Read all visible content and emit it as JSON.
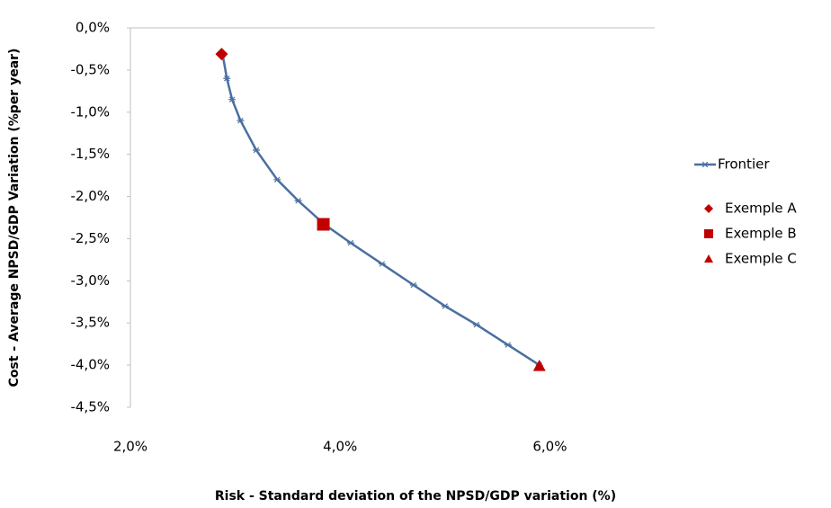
{
  "chart_data": {
    "type": "scatter",
    "x_label": "Risk - Standard deviation of the NPSD/GDP variation (%)",
    "y_label": "Cost  - Average NPSD/GDP Variation  (%per year)",
    "xlim": [
      2,
      7
    ],
    "ylim": [
      -4.5,
      0
    ],
    "xticks": [
      {
        "value": 2,
        "label": "2,0%"
      },
      {
        "value": 4,
        "label": "4,0%"
      },
      {
        "value": 6,
        "label": "6,0%"
      }
    ],
    "yticks": [
      {
        "value": 0,
        "label": "0,0%"
      },
      {
        "value": -0.5,
        "label": "-0,5%"
      },
      {
        "value": -1,
        "label": "-1,0%"
      },
      {
        "value": -1.5,
        "label": "-1,5%"
      },
      {
        "value": -2,
        "label": "-2,0%"
      },
      {
        "value": -2.5,
        "label": "-2,5%"
      },
      {
        "value": -3,
        "label": "-3,0%"
      },
      {
        "value": -3.5,
        "label": "-3,5%"
      },
      {
        "value": -4,
        "label": "-4,0%"
      },
      {
        "value": -4.5,
        "label": "-4,5%"
      }
    ],
    "legend": "right",
    "series": [
      {
        "name": "Frontier",
        "color": "#4a6fa0",
        "marker": "star",
        "line": true,
        "x": [
          2.88,
          2.92,
          2.97,
          3.05,
          3.2,
          3.4,
          3.6,
          3.85,
          4.1,
          4.4,
          4.7,
          5.0,
          5.3,
          5.6,
          5.9
        ],
        "values": [
          -0.32,
          -0.6,
          -0.85,
          -1.1,
          -1.45,
          -1.8,
          -2.05,
          -2.33,
          -2.55,
          -2.8,
          -3.05,
          -3.3,
          -3.52,
          -3.76,
          -4.0
        ]
      },
      {
        "name": "Exemple A",
        "color": "#c00000",
        "marker": "diamond",
        "line": false,
        "x": [
          2.87
        ],
        "values": [
          -0.31
        ]
      },
      {
        "name": "Exemple B",
        "color": "#c00000",
        "marker": "square",
        "line": false,
        "x": [
          3.84
        ],
        "values": [
          -2.33
        ]
      },
      {
        "name": "Exemple C",
        "color": "#c00000",
        "marker": "triangle",
        "line": false,
        "x": [
          5.9
        ],
        "values": [
          -4.01
        ]
      }
    ]
  }
}
